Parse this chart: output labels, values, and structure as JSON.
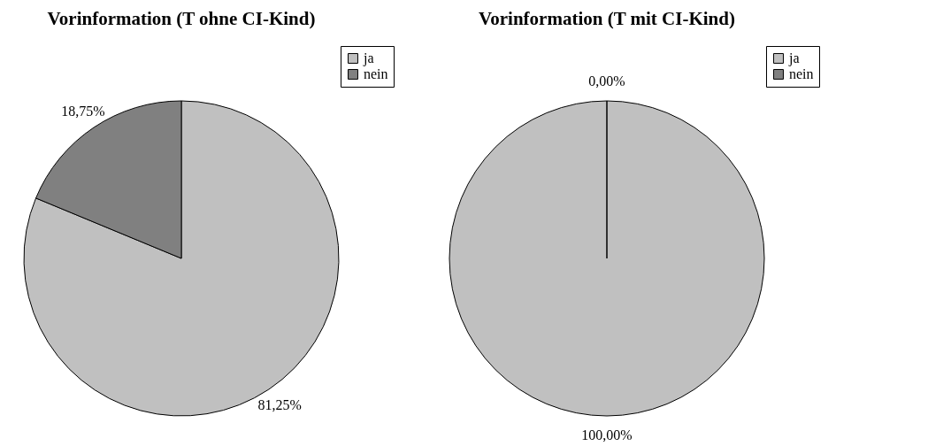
{
  "chart_data": [
    {
      "type": "pie",
      "title": "Vorinformation (T ohne CI-Kind)",
      "categories": [
        "ja",
        "nein"
      ],
      "values": [
        81.25,
        18.75
      ],
      "colors": [
        "#c0c0c0",
        "#808080"
      ],
      "value_labels": [
        "81,25%",
        "18,75%"
      ],
      "legend": "top right"
    },
    {
      "type": "pie",
      "title": "Vorinformation (T mit CI-Kind)",
      "categories": [
        "ja",
        "nein"
      ],
      "values": [
        100,
        0
      ],
      "colors": [
        "#c0c0c0",
        "#808080"
      ],
      "value_labels": [
        "100,00%",
        "0,00%"
      ],
      "legend": "top right"
    }
  ]
}
